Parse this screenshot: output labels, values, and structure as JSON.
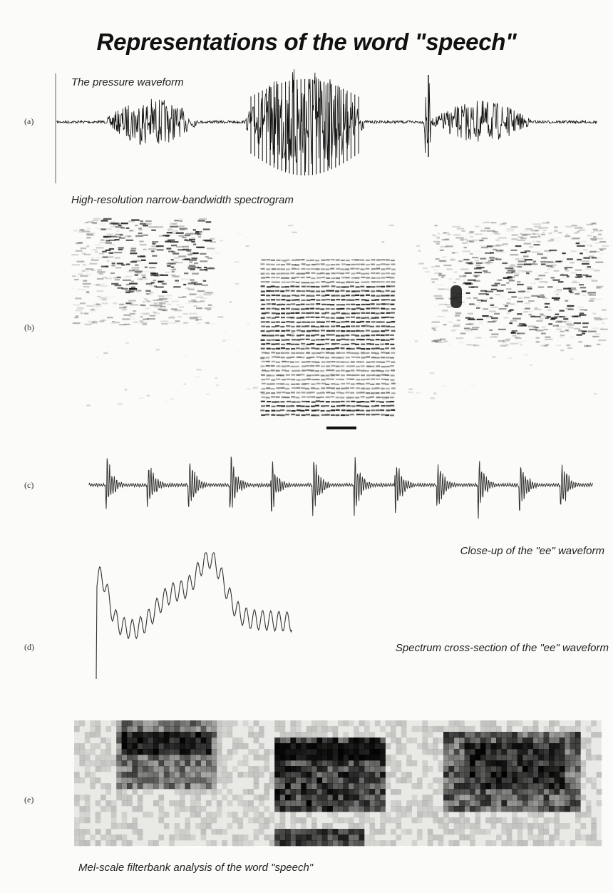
{
  "title": "Representations of the word \"speech\"",
  "panels": {
    "a": {
      "label": "(a)",
      "caption": "The pressure waveform"
    },
    "b": {
      "label": "(b)",
      "caption": "High-resolution narrow-bandwidth spectrogram"
    },
    "c": {
      "label": "(c)",
      "caption": "Close-up of the  \"ee\" waveform"
    },
    "d": {
      "label": "(d)",
      "caption": "Spectrum cross-section of the \"ee\" waveform"
    },
    "e": {
      "label": "(e)",
      "caption": "Mel-scale filterbank analysis of the word \"speech\""
    }
  },
  "colors": {
    "ink": "#111111",
    "trace": "#333333",
    "paper": "#fbfbf9",
    "mel_bg": "#e9eae6"
  }
}
